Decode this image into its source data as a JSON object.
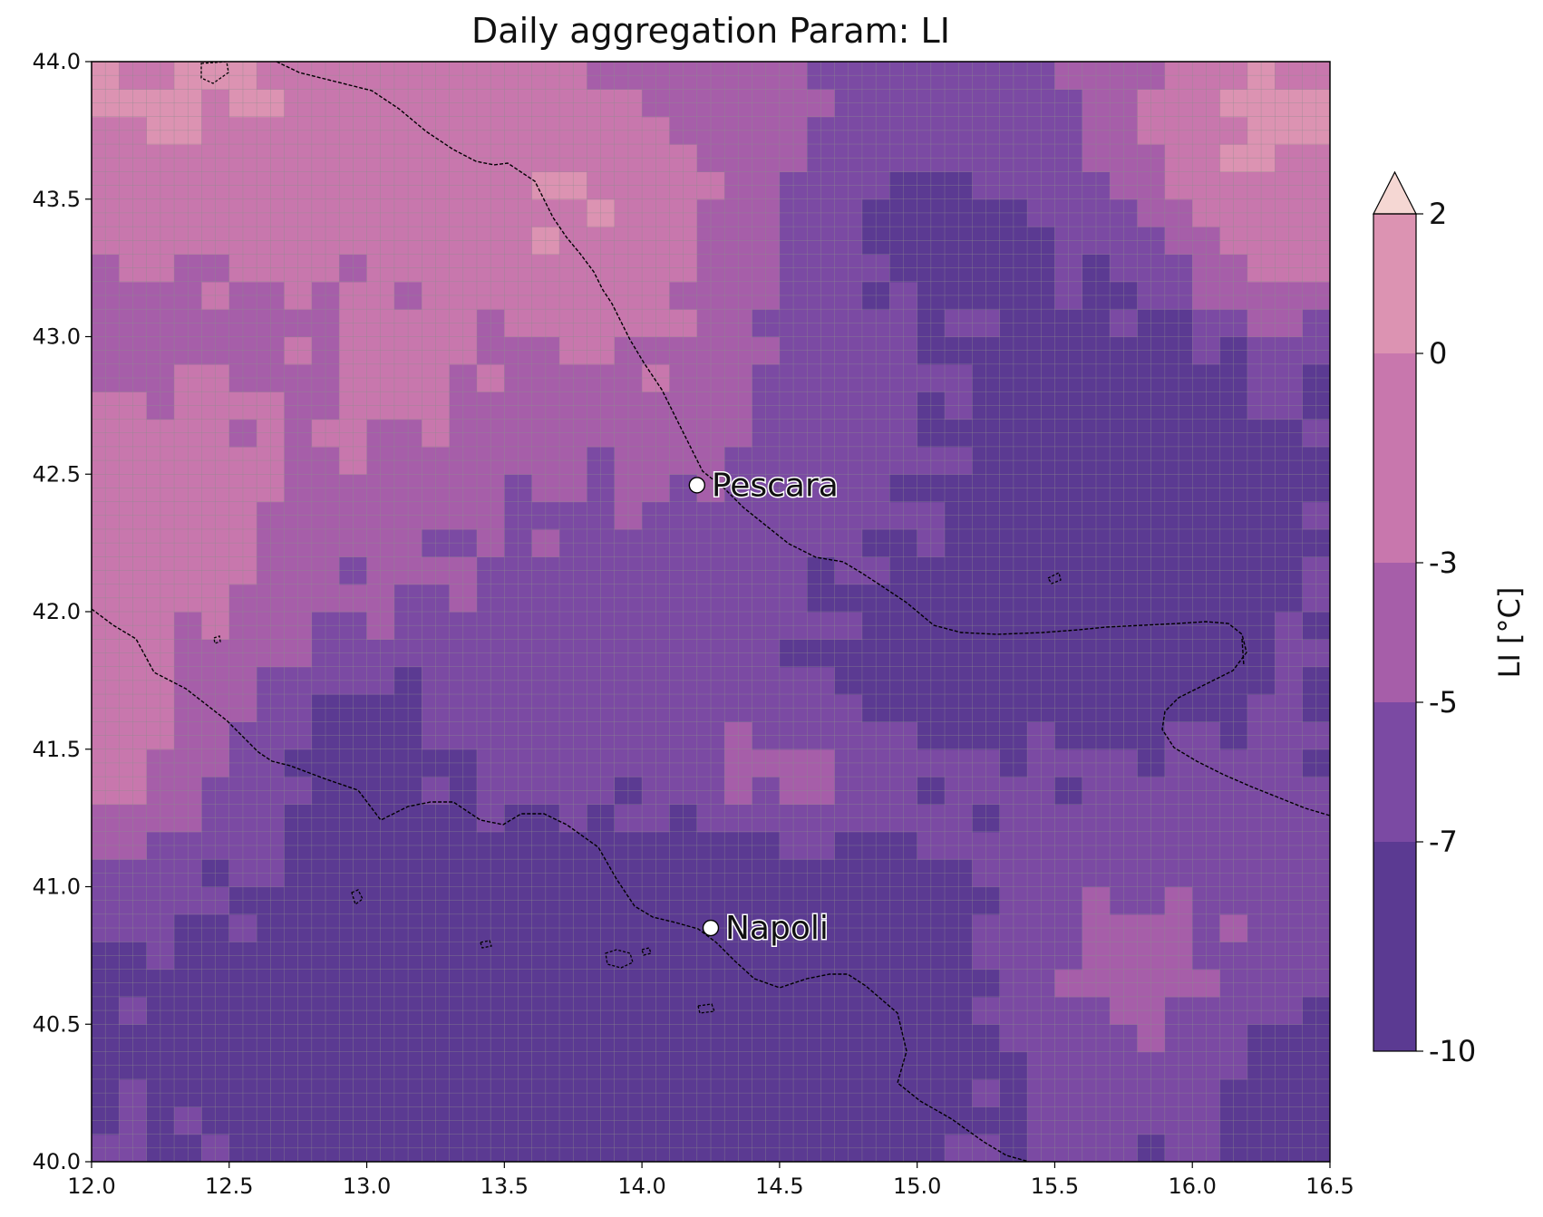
{
  "title": "Daily aggregation Param: LI",
  "chart_data": {
    "type": "heatmap",
    "title": "Daily aggregation Param: LI",
    "xlim": [
      12.0,
      16.5
    ],
    "ylim": [
      40.0,
      44.0
    ],
    "x_ticks": [
      "12.0",
      "12.5",
      "13.0",
      "13.5",
      "14.0",
      "14.5",
      "15.0",
      "15.5",
      "16.0",
      "16.5"
    ],
    "y_ticks": [
      "40.0",
      "40.5",
      "41.0",
      "41.5",
      "42.0",
      "42.5",
      "43.0",
      "43.5",
      "44.0"
    ],
    "grid": true,
    "colorbar": {
      "label": "LI  [°C]",
      "ticks": [
        "2",
        "0",
        "-3",
        "-5",
        "-7",
        "-10"
      ],
      "levels": [
        -10,
        -7,
        -5,
        -3,
        0,
        2
      ],
      "colors": [
        "#5b3a92",
        "#7b4aa3",
        "#a65ea9",
        "#c877ad",
        "#dc93b2",
        "#f5d7d3"
      ],
      "extend": "max"
    },
    "cities": [
      {
        "name": "Pescara",
        "lon": 14.2,
        "lat": 42.46
      },
      {
        "name": "Napoli",
        "lon": 14.25,
        "lat": 40.85
      }
    ]
  }
}
